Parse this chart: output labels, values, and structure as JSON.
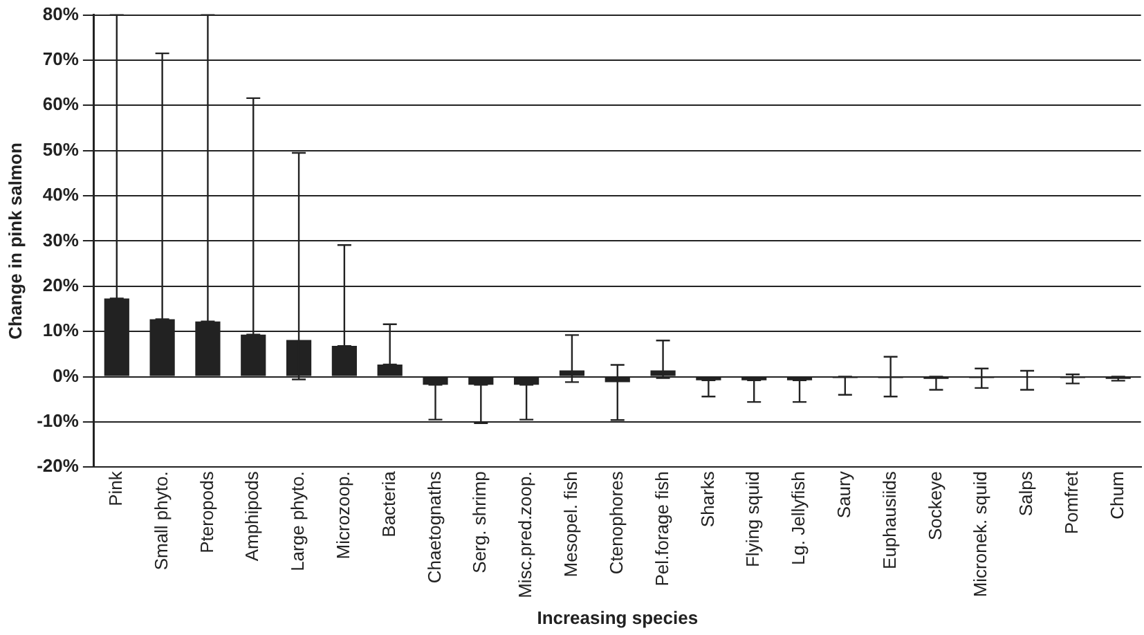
{
  "chart_data": {
    "type": "bar",
    "xlabel": "Increasing species",
    "ylabel": "Change in pink salmon",
    "categories": [
      "Pink",
      "Small phyto.",
      "Pteropods",
      "Amphipods",
      "Large phyto.",
      "Microzoop.",
      "Bacteria",
      "Chaetognaths",
      "Serg. shrimp",
      "Misc.pred.zoop.",
      "Mesopel. fish",
      "Ctenophores",
      "Pel.forage fish",
      "Sharks",
      "Flying squid",
      "Lg. Jellyfish",
      "Saury",
      "Euphausiids",
      "Sockeye",
      "Micronek. squid",
      "Salps",
      "Pomfret",
      "Chum"
    ],
    "values": [
      17.3,
      12.7,
      12.2,
      9.3,
      8.1,
      6.8,
      2.7,
      -1.8,
      -1.8,
      -1.8,
      1.4,
      -1.2,
      1.4,
      -0.8,
      -0.8,
      -0.8,
      -0.3,
      -0.3,
      -0.5,
      -0.3,
      0,
      -0.3,
      -0.5
    ],
    "errors": [
      [
        17.3,
        80
      ],
      [
        12.7,
        71.5
      ],
      [
        12.2,
        80
      ],
      [
        9.3,
        61.6
      ],
      [
        -0.6,
        49.5
      ],
      [
        6.8,
        29.1
      ],
      [
        2.7,
        11.6
      ],
      [
        -9.5,
        -1.8
      ],
      [
        -10.3,
        -1.8
      ],
      [
        -9.5,
        -1.8
      ],
      [
        -1.2,
        9.2
      ],
      [
        -9.6,
        2.6
      ],
      [
        -0.3,
        8
      ],
      [
        -4.4,
        -0.8
      ],
      [
        -5.6,
        -0.8
      ],
      [
        -5.6,
        -0.8
      ],
      [
        -4,
        0
      ],
      [
        -4.4,
        4.4
      ],
      [
        -2.9,
        0
      ],
      [
        -2.5,
        1.8
      ],
      [
        -2.9,
        1.3
      ],
      [
        -1.5,
        0.5
      ],
      [
        -0.9,
        0
      ]
    ],
    "color": "#222222",
    "ylim": [
      -20,
      80
    ],
    "yticks": [
      {
        "value": -20,
        "label": "-20%"
      },
      {
        "value": -10,
        "label": "-10%"
      },
      {
        "value": 0,
        "label": "0%"
      },
      {
        "value": 10,
        "label": "10%"
      },
      {
        "value": 20,
        "label": "20%"
      },
      {
        "value": 30,
        "label": "30%"
      },
      {
        "value": 40,
        "label": "40%"
      },
      {
        "value": 50,
        "label": "50%"
      },
      {
        "value": 60,
        "label": "60%"
      },
      {
        "value": 70,
        "label": "70%"
      },
      {
        "value": 80,
        "label": "80%"
      }
    ],
    "grid": "y",
    "legend": false
  }
}
